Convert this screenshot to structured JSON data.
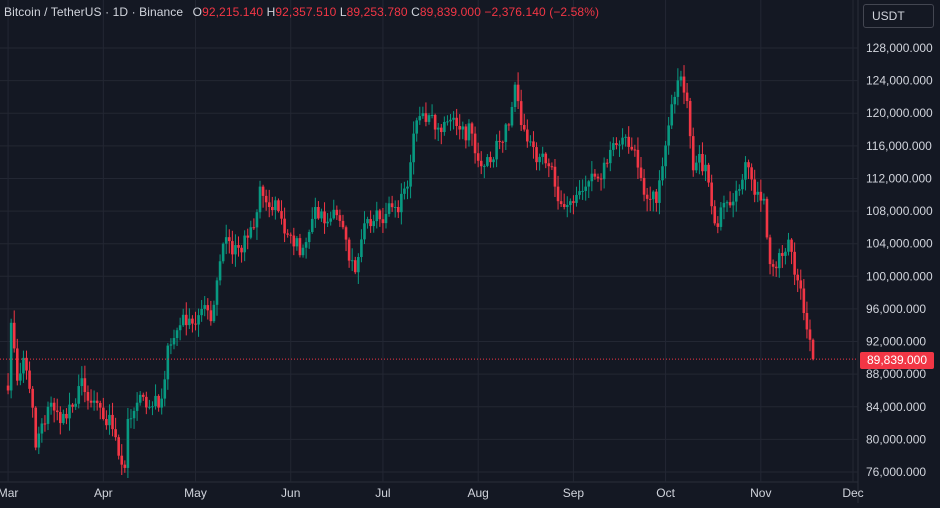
{
  "legend": {
    "symbol": "Bitcoin / TetherUS",
    "interval": "1D",
    "exchange": "Binance",
    "o_label": "O",
    "o_value": "92,215.140",
    "h_label": "H",
    "h_value": "92,357.510",
    "l_label": "L",
    "l_value": "89,253.780",
    "c_label": "C",
    "c_value": "89,839.000",
    "change": "−2,376.140 (−2.58%)"
  },
  "currency_button": "USDT",
  "last_price_label": "89,839.000",
  "colors": {
    "up": "#089981",
    "down": "#f23645",
    "background": "#141823",
    "grid": "#232733",
    "text": "#d1d4dc"
  },
  "chart_data": {
    "type": "candlestick",
    "title": "",
    "xlabel": "",
    "ylabel": "",
    "ylim": [
      74000,
      130000
    ],
    "grid": true,
    "last_price": 89839,
    "x_ticks": [
      "Mar",
      "Apr",
      "May",
      "Jun",
      "Jul",
      "Aug",
      "Sep",
      "Oct",
      "Nov",
      "Dec"
    ],
    "y_ticks": [
      {
        "value": 128000,
        "label": "128,000.000"
      },
      {
        "value": 124000,
        "label": "124,000.000"
      },
      {
        "value": 120000,
        "label": "120,000.000"
      },
      {
        "value": 116000,
        "label": "116,000.000"
      },
      {
        "value": 112000,
        "label": "112,000.000"
      },
      {
        "value": 108000,
        "label": "108,000.000"
      },
      {
        "value": 104000,
        "label": "104,000.000"
      },
      {
        "value": 100000,
        "label": "100,000.000"
      },
      {
        "value": 96000,
        "label": "96,000.000"
      },
      {
        "value": 92000,
        "label": "92,000.000"
      },
      {
        "value": 88000,
        "label": "88,000.000"
      },
      {
        "value": 84000,
        "label": "84,000.000"
      },
      {
        "value": 80000,
        "label": "80,000.000"
      },
      {
        "value": 76000,
        "label": "76,000.000"
      }
    ],
    "series": [
      {
        "close_path": [
          [
            "2025-03-01",
            86000
          ],
          [
            "2025-03-02",
            94300
          ],
          [
            "2025-03-04",
            87200
          ],
          [
            "2025-03-06",
            90000
          ],
          [
            "2025-03-08",
            86200
          ],
          [
            "2025-03-10",
            79000
          ],
          [
            "2025-03-14",
            84000
          ],
          [
            "2025-03-18",
            82000
          ],
          [
            "2025-03-22",
            84000
          ],
          [
            "2025-03-25",
            87500
          ],
          [
            "2025-03-28",
            84500
          ],
          [
            "2025-04-01",
            82500
          ],
          [
            "2025-04-03",
            83000
          ],
          [
            "2025-04-06",
            78000
          ],
          [
            "2025-04-08",
            76500
          ],
          [
            "2025-04-09",
            82500
          ],
          [
            "2025-04-12",
            84500
          ],
          [
            "2025-04-16",
            84000
          ],
          [
            "2025-04-20",
            85000
          ],
          [
            "2025-04-22",
            91500
          ],
          [
            "2025-04-26",
            94000
          ],
          [
            "2025-04-30",
            94200
          ],
          [
            "2025-05-03",
            96000
          ],
          [
            "2025-05-06",
            94500
          ],
          [
            "2025-05-08",
            99500
          ],
          [
            "2025-05-10",
            104000
          ],
          [
            "2025-05-15",
            103500
          ],
          [
            "2025-05-20",
            106000
          ],
          [
            "2025-05-22",
            111000
          ],
          [
            "2025-05-25",
            108500
          ],
          [
            "2025-05-28",
            108000
          ],
          [
            "2025-06-01",
            105000
          ],
          [
            "2025-06-05",
            103500
          ],
          [
            "2025-06-09",
            108500
          ],
          [
            "2025-06-12",
            106500
          ],
          [
            "2025-06-16",
            107500
          ],
          [
            "2025-06-19",
            104500
          ],
          [
            "2025-06-22",
            100500
          ],
          [
            "2025-06-25",
            106500
          ],
          [
            "2025-06-30",
            107000
          ],
          [
            "2025-07-05",
            108500
          ],
          [
            "2025-07-09",
            111000
          ],
          [
            "2025-07-11",
            117500
          ],
          [
            "2025-07-14",
            120000
          ],
          [
            "2025-07-18",
            118000
          ],
          [
            "2025-07-22",
            119000
          ],
          [
            "2025-07-26",
            118000
          ],
          [
            "2025-07-30",
            117500
          ],
          [
            "2025-08-02",
            113500
          ],
          [
            "2025-08-05",
            114000
          ],
          [
            "2025-08-08",
            116500
          ],
          [
            "2025-08-11",
            118500
          ],
          [
            "2025-08-13",
            123500
          ],
          [
            "2025-08-16",
            118000
          ],
          [
            "2025-08-20",
            114000
          ],
          [
            "2025-08-24",
            113500
          ],
          [
            "2025-08-29",
            108500
          ],
          [
            "2025-09-01",
            109000
          ],
          [
            "2025-09-05",
            111000
          ],
          [
            "2025-09-09",
            112000
          ],
          [
            "2025-09-13",
            115500
          ],
          [
            "2025-09-17",
            117000
          ],
          [
            "2025-09-21",
            115500
          ],
          [
            "2025-09-25",
            109500
          ],
          [
            "2025-09-28",
            109000
          ],
          [
            "2025-09-30",
            113500
          ],
          [
            "2025-10-02",
            118500
          ],
          [
            "2025-10-04",
            122000
          ],
          [
            "2025-10-06",
            124500
          ],
          [
            "2025-10-08",
            121500
          ],
          [
            "2025-10-10",
            113000
          ],
          [
            "2025-10-12",
            115000
          ],
          [
            "2025-10-15",
            111500
          ],
          [
            "2025-10-17",
            106500
          ],
          [
            "2025-10-20",
            109000
          ],
          [
            "2025-10-24",
            110500
          ],
          [
            "2025-10-27",
            114000
          ],
          [
            "2025-10-30",
            110000
          ],
          [
            "2025-11-02",
            109500
          ],
          [
            "2025-11-04",
            101500
          ],
          [
            "2025-11-06",
            101000
          ],
          [
            "2025-11-08",
            102500
          ],
          [
            "2025-11-10",
            104500
          ],
          [
            "2025-11-11",
            103000
          ],
          [
            "2025-11-13",
            99500
          ],
          [
            "2025-11-15",
            95500
          ],
          [
            "2025-11-17",
            92215
          ],
          [
            "2025-11-18",
            89839
          ]
        ]
      }
    ]
  }
}
